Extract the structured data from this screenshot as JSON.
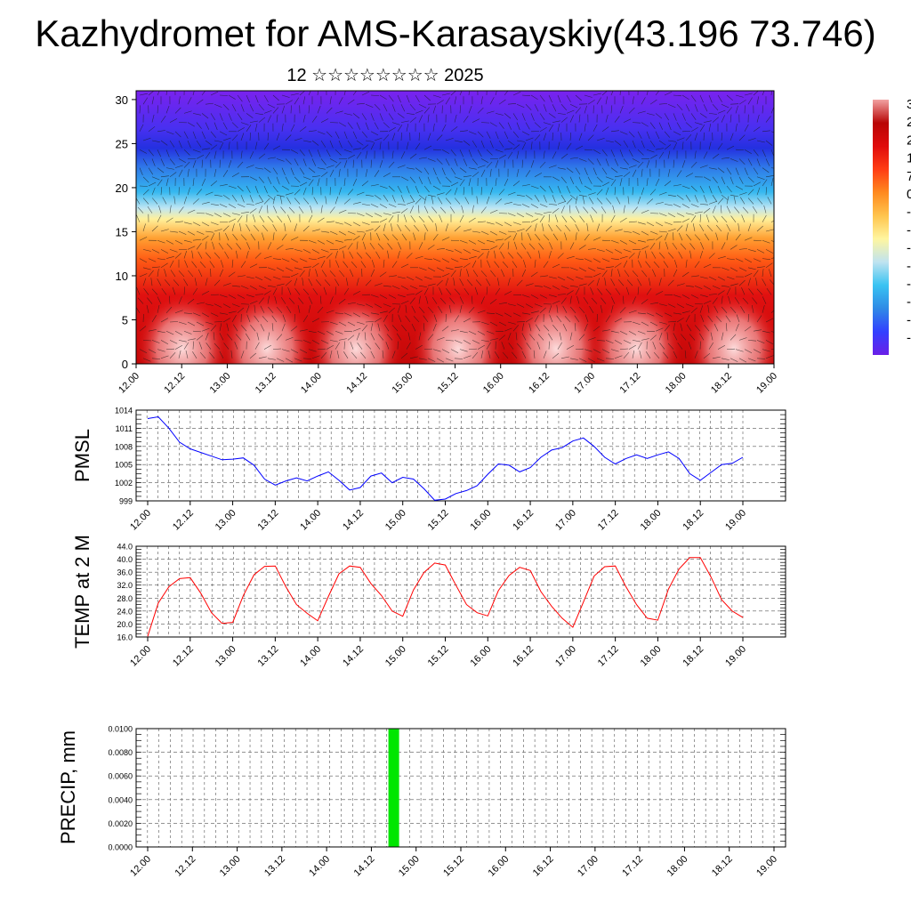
{
  "title": "Kazhydromet for AMS-Karasayskiy(43.196 73.746)",
  "subtitle": "12 ☆☆☆☆☆☆☆☆ 2025",
  "time_labels": [
    "12.00",
    "12.12",
    "13.00",
    "13.12",
    "14.00",
    "14.12",
    "15.00",
    "15.12",
    "16.00",
    "16.12",
    "17.00",
    "17.12",
    "18.00",
    "18.12",
    "19.00"
  ],
  "colorbar": {
    "labels": [
      "3",
      "2",
      "2",
      "1",
      "7",
      "0",
      "-",
      "-",
      "-",
      "-",
      "-",
      "-",
      "-",
      "-"
    ]
  },
  "chart_data": [
    {
      "type": "heatmap",
      "name": "cross-section",
      "ylim": [
        0,
        31
      ],
      "yticks": [
        "0",
        "5",
        "10",
        "15",
        "20",
        "25",
        "30"
      ],
      "colormap": [
        "#6a1fe8",
        "#3340ff",
        "#2f8ae6",
        "#39c3f2",
        "#bfe3f0",
        "#fff6a0",
        "#ffc44d",
        "#ff8a1f",
        "#ff3d14",
        "#e00c0c",
        "#b80606",
        "#f2a2a2"
      ],
      "overlay": "wind barbs and contours"
    },
    {
      "type": "line",
      "ylabel": "PMSL",
      "ylim": [
        999,
        1014
      ],
      "yticks": [
        "999",
        "1002",
        "1005",
        "1008",
        "1011",
        "1014"
      ],
      "color": "#0000ff",
      "values": [
        1012.6,
        1012.9,
        1011.0,
        1008.7,
        1007.6,
        1007.0,
        1006.4,
        1005.8,
        1005.9,
        1006.1,
        1004.9,
        1002.6,
        1001.6,
        1002.3,
        1002.8,
        1002.3,
        1003.1,
        1003.8,
        1002.4,
        1000.8,
        1001.2,
        1003.1,
        1003.6,
        1002.0,
        1002.9,
        1002.6,
        1001.0,
        999.1,
        999.3,
        1000.2,
        1000.7,
        1001.5,
        1003.4,
        1005.1,
        1004.9,
        1003.8,
        1004.5,
        1006.2,
        1007.4,
        1007.8,
        1008.9,
        1009.4,
        1008.0,
        1006.2,
        1005.1,
        1006.0,
        1006.6,
        1006.0,
        1006.6,
        1007.1,
        1006.0,
        1003.5,
        1002.4,
        1003.7,
        1005.0,
        1005.2,
        1006.2
      ]
    },
    {
      "type": "line",
      "ylabel": "TEMP at 2 M",
      "ylim": [
        16,
        44
      ],
      "yticks": [
        "16.0",
        "20.0",
        "24.0",
        "28.0",
        "32.0",
        "36.0",
        "40.0",
        "44.0"
      ],
      "color": "#ff0000",
      "values": [
        16.2,
        26.5,
        31.5,
        34.0,
        34.3,
        29.5,
        23.5,
        20.2,
        20.5,
        28.8,
        35.2,
        37.8,
        37.9,
        31.5,
        26.0,
        23.3,
        21.0,
        28.5,
        35.5,
        37.9,
        37.5,
        32.5,
        28.8,
        24.0,
        22.4,
        30.5,
        35.9,
        38.8,
        38.2,
        32.0,
        26.0,
        23.5,
        22.5,
        30.3,
        35.0,
        37.5,
        36.5,
        30.0,
        25.5,
        21.8,
        19.0,
        26.8,
        34.8,
        37.7,
        37.9,
        31.5,
        26.0,
        21.8,
        21.2,
        30.8,
        37.0,
        40.5,
        40.5,
        34.5,
        27.5,
        24.0,
        22.0
      ]
    },
    {
      "type": "bar",
      "ylabel": "PRECIP, mm",
      "ylim": [
        0,
        0.01
      ],
      "yticks": [
        "0.0000",
        "0.0020",
        "0.0040",
        "0.0060",
        "0.0080",
        "0.0100"
      ],
      "color": "#00e600",
      "bars": [
        {
          "x": "14.18",
          "value": 0.01
        }
      ]
    }
  ]
}
